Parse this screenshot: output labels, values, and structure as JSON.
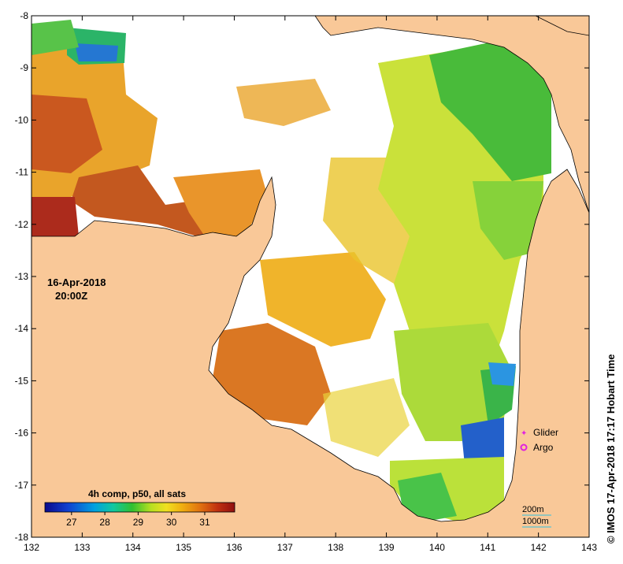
{
  "map": {
    "date": "16-Apr-2018",
    "time": "20:00Z",
    "credit": "© IMOS 17-Apr-2018 17:17 Hobart Time",
    "colorbar_title": "4h comp, p50, all sats",
    "colorbar_ticks": [
      "27",
      "28",
      "29",
      "30",
      "31"
    ],
    "colorbar_tick_values": [
      27,
      28,
      29,
      30,
      31
    ],
    "colorbar_range": [
      26.2,
      31.9
    ],
    "legend": {
      "glider": "Glider",
      "argo": "Argo"
    },
    "contours": {
      "c200": "200m",
      "c1000": "1000m"
    },
    "x_ticks": [
      "132",
      "133",
      "134",
      "135",
      "136",
      "137",
      "138",
      "139",
      "140",
      "141",
      "142",
      "143"
    ],
    "y_ticks": [
      "-8",
      "-9",
      "-10",
      "-11",
      "-12",
      "-13",
      "-14",
      "-15",
      "-16",
      "-17",
      "-18"
    ],
    "lon_range": [
      132,
      143
    ],
    "lat_range": [
      -18,
      -8
    ]
  },
  "colors": {
    "land": "#f9c898",
    "ocean_nodata": "#ffffff",
    "coast": "#000000",
    "glider": "#e020e0",
    "argo": "#e020e0",
    "contour_200": "#30c0e0",
    "contour_1000": "#30c0e0"
  }
}
